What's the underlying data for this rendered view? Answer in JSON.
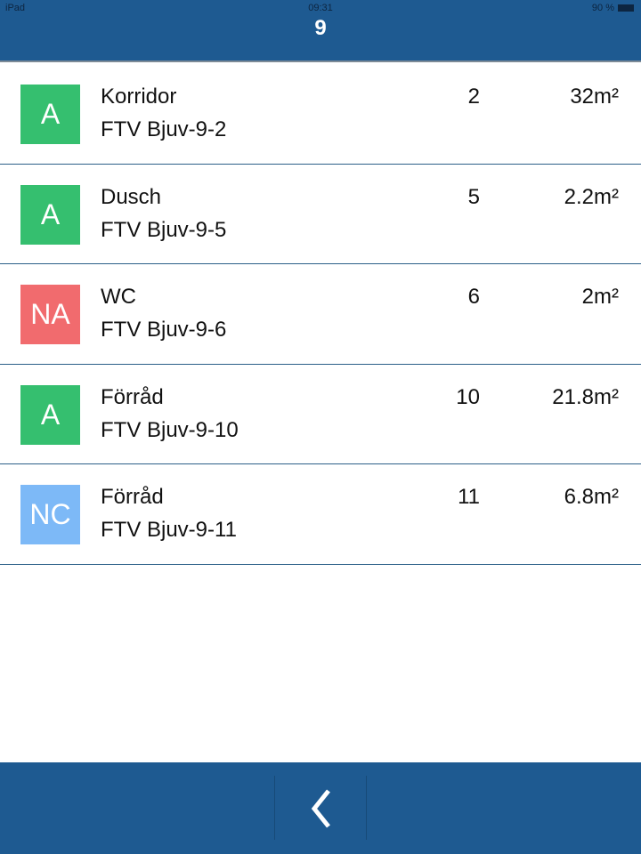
{
  "status_bar": {
    "device": "iPad",
    "time": "09:31",
    "battery": "90 %"
  },
  "header": {
    "title": "9"
  },
  "items": [
    {
      "badge": "A",
      "badge_color": "#35bf6f",
      "name": "Korridor",
      "code": "FTV Bjuv-9-2",
      "number": "2",
      "area": "32m²"
    },
    {
      "badge": "A",
      "badge_color": "#35bf6f",
      "name": "Dusch",
      "code": "FTV Bjuv-9-5",
      "number": "5",
      "area": "2.2m²"
    },
    {
      "badge": "NA",
      "badge_color": "#f16b6e",
      "name": "WC",
      "code": "FTV Bjuv-9-6",
      "number": "6",
      "area": "2m²"
    },
    {
      "badge": "A",
      "badge_color": "#35bf6f",
      "name": "Förråd",
      "code": "FTV Bjuv-9-10",
      "number": "10",
      "area": "21.8m²"
    },
    {
      "badge": "NC",
      "badge_color": "#7db9f7",
      "name": "Förråd",
      "code": "FTV Bjuv-9-11",
      "number": "11",
      "area": "6.8m²"
    }
  ],
  "footer": {
    "back_icon": "chevron-left-icon"
  }
}
